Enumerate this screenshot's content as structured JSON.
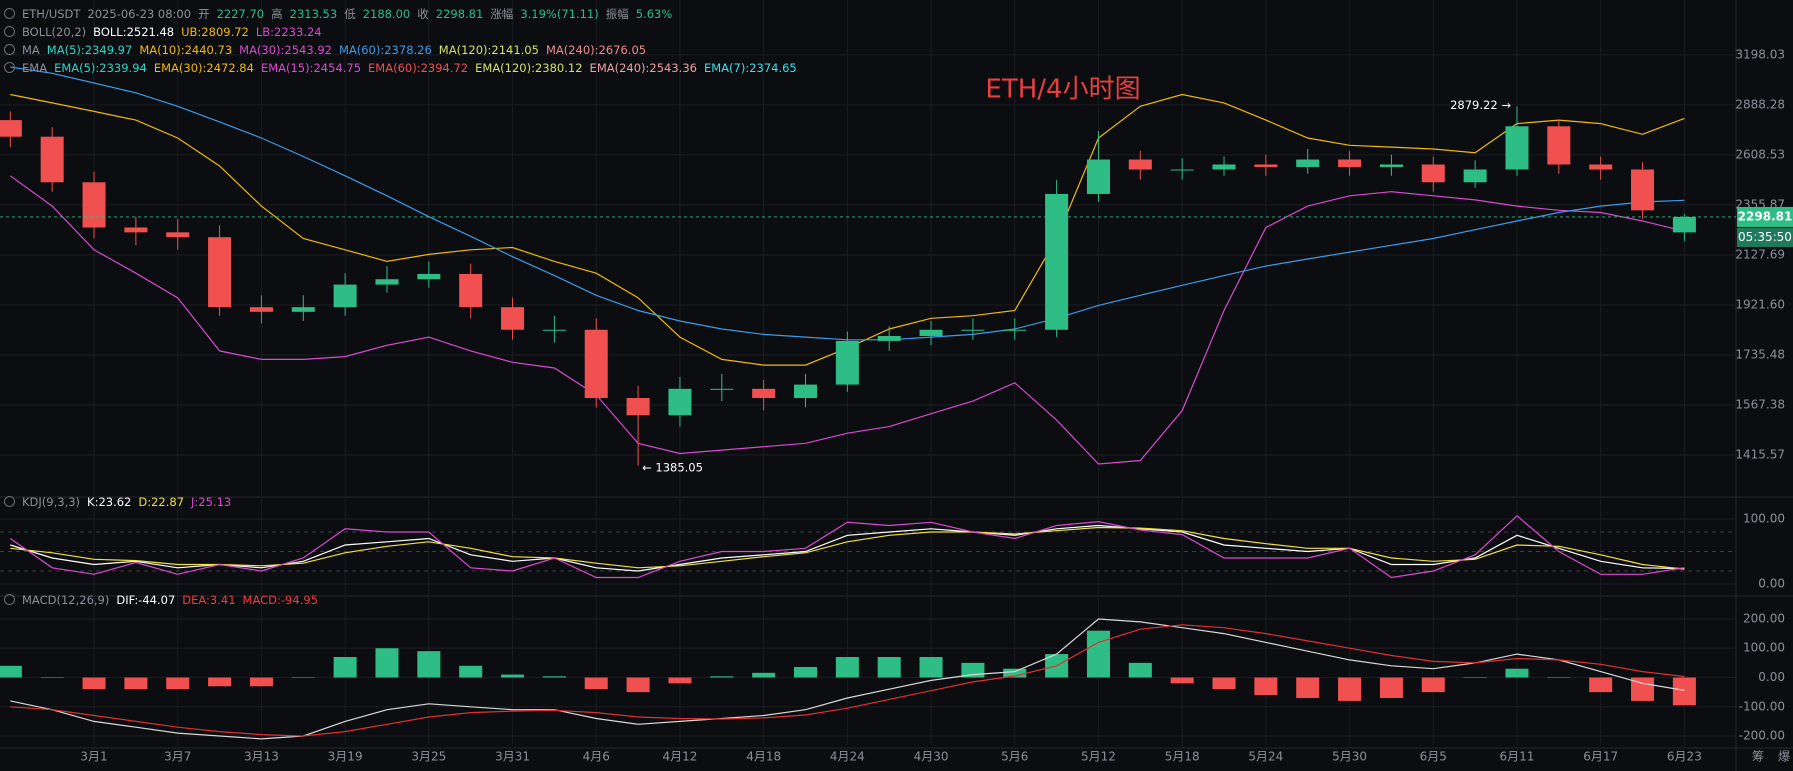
{
  "legends": {
    "price": [
      [
        {
          "text": "ETH/USDT",
          "color": "#8b909a"
        },
        {
          "text": "2025-06-23 08:00",
          "color": "#8b909a"
        },
        {
          "text": "开",
          "color": "#8b909a"
        },
        {
          "text": "2227.70",
          "color": "#2ebd85"
        },
        {
          "text": "高",
          "color": "#8b909a"
        },
        {
          "text": "2313.53",
          "color": "#2ebd85"
        },
        {
          "text": "低",
          "color": "#8b909a"
        },
        {
          "text": "2188.00",
          "color": "#2ebd85"
        },
        {
          "text": "收",
          "color": "#8b909a"
        },
        {
          "text": "2298.81",
          "color": "#2ebd85"
        },
        {
          "text": "涨幅",
          "color": "#8b909a"
        },
        {
          "text": "3.19%(71.11)",
          "color": "#2ebd85"
        },
        {
          "text": "振幅",
          "color": "#8b909a"
        },
        {
          "text": "5.63%",
          "color": "#2ebd85"
        }
      ],
      [
        {
          "text": "BOLL(20,2)",
          "color": "#8b909a"
        },
        {
          "text": "BOLL:2521.48",
          "color": "#ffffff"
        },
        {
          "text": "UB:2809.72",
          "color": "#f0b90b"
        },
        {
          "text": "LB:2233.24",
          "color": "#d84bd0"
        }
      ],
      [
        {
          "text": "MA",
          "color": "#8b909a"
        },
        {
          "text": "MA(5):2349.97",
          "color": "#2bd6c6"
        },
        {
          "text": "MA(10):2440.73",
          "color": "#f0b90b"
        },
        {
          "text": "MA(30):2543.92",
          "color": "#d84bd0"
        },
        {
          "text": "MA(60):2378.26",
          "color": "#3d9be9"
        },
        {
          "text": "MA(120):2141.05",
          "color": "#d6e06a"
        },
        {
          "text": "MA(240):2676.05",
          "color": "#f08a8a"
        }
      ],
      [
        {
          "text": "EMA",
          "color": "#8b909a"
        },
        {
          "text": "EMA(5):2339.94",
          "color": "#2bd6c6"
        },
        {
          "text": "EMA(30):2472.84",
          "color": "#f0b90b"
        },
        {
          "text": "EMA(15):2454.75",
          "color": "#d84bd0"
        },
        {
          "text": "EMA(60):2394.72",
          "color": "#f05050"
        },
        {
          "text": "EMA(120):2380.12",
          "color": "#d6e06a"
        },
        {
          "text": "EMA(240):2543.36",
          "color": "#f0a0a0"
        },
        {
          "text": "EMA(7):2374.65",
          "color": "#3ce0f0"
        }
      ]
    ],
    "kdj": [
      {
        "text": "KDJ(9,3,3)",
        "color": "#8b909a"
      },
      {
        "text": "K:23.62",
        "color": "#ffffff"
      },
      {
        "text": "D:22.87",
        "color": "#f0e040"
      },
      {
        "text": "J:25.13",
        "color": "#d84bd0"
      }
    ],
    "macd": [
      {
        "text": "MACD(12,26,9)",
        "color": "#8b909a"
      },
      {
        "text": "DIF:-44.07",
        "color": "#ffffff"
      },
      {
        "text": "DEA:3.41",
        "color": "#f03c3c"
      },
      {
        "text": "MACD:-94.95",
        "color": "#f03c3c"
      }
    ]
  },
  "toolbar": [
    "筹",
    "爆"
  ],
  "chart_data": [
    {
      "type": "candlestick",
      "title": "ETH/4小时图",
      "log_scale": true,
      "grid": true,
      "x": [
        -6,
        -3,
        0,
        3,
        6,
        9,
        12,
        15,
        18,
        21,
        24,
        27,
        30,
        33,
        36,
        39,
        42,
        45,
        48,
        51,
        54,
        57,
        60,
        63,
        66,
        69,
        72,
        75,
        78,
        81,
        84,
        87,
        90,
        93,
        96,
        99,
        102,
        105,
        108,
        111,
        114
      ],
      "open": [
        2800,
        2707,
        2467,
        2250,
        2228,
        2206,
        1913,
        1895,
        1913,
        2003,
        2025,
        2047,
        1913,
        1827,
        1827,
        1590,
        1535,
        1620,
        1620,
        1590,
        1634,
        1786,
        1804,
        1827,
        1827,
        1827,
        2409,
        2584,
        2532,
        2532,
        2558,
        2545,
        2584,
        2545,
        2558,
        2467,
        2532,
        2765,
        2558,
        2532,
        2227.7
      ],
      "high": [
        2850,
        2760,
        2520,
        2300,
        2290,
        2260,
        1960,
        1960,
        2050,
        2080,
        2100,
        2090,
        1950,
        1880,
        1870,
        1630,
        1660,
        1670,
        1650,
        1670,
        1820,
        1840,
        1860,
        1870,
        1870,
        2480,
        2738,
        2630,
        2590,
        2600,
        2610,
        2640,
        2630,
        2610,
        2600,
        2580,
        2879.22,
        2800,
        2600,
        2570,
        2313.53
      ],
      "low": [
        2650,
        2420,
        2200,
        2170,
        2150,
        1880,
        1850,
        1860,
        1880,
        1970,
        1990,
        1870,
        1790,
        1780,
        1560,
        1385.05,
        1500,
        1580,
        1550,
        1560,
        1610,
        1750,
        1770,
        1790,
        1790,
        1800,
        2370,
        2480,
        2480,
        2500,
        2500,
        2510,
        2500,
        2500,
        2420,
        2440,
        2500,
        2510,
        2480,
        2290,
        2188.0
      ],
      "close": [
        2707,
        2467,
        2250,
        2228,
        2206,
        1913,
        1895,
        1913,
        2003,
        2025,
        2047,
        1913,
        1827,
        1827,
        1590,
        1535,
        1620,
        1620,
        1590,
        1634,
        1786,
        1804,
        1827,
        1827,
        1827,
        2409,
        2584,
        2532,
        2532,
        2558,
        2545,
        2584,
        2545,
        2558,
        2467,
        2532,
        2765,
        2558,
        2532,
        2330,
        2298.81
      ],
      "up_color": "#2ebd85",
      "down_color": "#f0504f",
      "lines": [
        {
          "color": "#f0b90b",
          "values": [
            2950,
            2900,
            2850,
            2800,
            2700,
            2550,
            2350,
            2200,
            2150,
            2100,
            2130,
            2150,
            2160,
            2100,
            2050,
            1950,
            1800,
            1720,
            1700,
            1700,
            1760,
            1830,
            1870,
            1880,
            1900,
            2200,
            2700,
            2880,
            2950,
            2900,
            2800,
            2700,
            2660,
            2650,
            2640,
            2620,
            2780,
            2800,
            2780,
            2720,
            2809.72
          ]
        },
        {
          "color": "#d84bd0",
          "values": [
            2500,
            2350,
            2150,
            2050,
            1950,
            1750,
            1720,
            1720,
            1730,
            1770,
            1800,
            1750,
            1710,
            1690,
            1600,
            1450,
            1420,
            1430,
            1440,
            1450,
            1480,
            1500,
            1540,
            1580,
            1640,
            1520,
            1390,
            1400,
            1550,
            1900,
            2250,
            2350,
            2400,
            2420,
            2400,
            2380,
            2350,
            2330,
            2320,
            2280,
            2233.24
          ]
        },
        {
          "color": "#3d9be9",
          "values": [
            3120,
            3080,
            3020,
            2960,
            2880,
            2790,
            2700,
            2600,
            2500,
            2400,
            2300,
            2210,
            2120,
            2040,
            1960,
            1900,
            1860,
            1830,
            1810,
            1800,
            1790,
            1790,
            1800,
            1810,
            1830,
            1870,
            1920,
            1960,
            2000,
            2040,
            2080,
            2110,
            2140,
            2170,
            2200,
            2240,
            2280,
            2320,
            2350,
            2370,
            2378.26
          ]
        }
      ],
      "high_label": "2879.22 →",
      "low_label": "← 1385.05",
      "price_tag": "2298.81",
      "countdown": "05:35:50",
      "xlim": [
        -6.74,
        117.7
      ],
      "ylim": [
        1313,
        3518
      ],
      "yticks": [
        3198.03,
        2888.28,
        2608.53,
        2355.87,
        2127.69,
        {
          "value": 1921.6,
          "label": "1921.60"
        },
        1735.48,
        1567.38,
        1415.57
      ]
    },
    {
      "type": "line",
      "x": [
        -6,
        -3,
        0,
        3,
        6,
        9,
        12,
        15,
        18,
        21,
        24,
        27,
        30,
        33,
        36,
        39,
        42,
        45,
        48,
        51,
        54,
        57,
        60,
        63,
        66,
        69,
        72,
        75,
        78,
        81,
        84,
        87,
        90,
        93,
        96,
        99,
        102,
        105,
        108,
        111,
        114
      ],
      "series": [
        {
          "color": "#ffffff",
          "values": [
            60,
            40,
            30,
            35,
            25,
            30,
            25,
            35,
            60,
            65,
            70,
            45,
            35,
            40,
            25,
            20,
            30,
            40,
            45,
            50,
            75,
            80,
            85,
            80,
            75,
            85,
            90,
            85,
            80,
            60,
            55,
            50,
            55,
            30,
            30,
            40,
            75,
            55,
            35,
            25,
            23.62
          ]
        },
        {
          "color": "#f0e040",
          "values": [
            55,
            48,
            38,
            36,
            30,
            30,
            28,
            32,
            48,
            58,
            65,
            55,
            42,
            40,
            32,
            25,
            28,
            35,
            42,
            48,
            65,
            75,
            80,
            80,
            77,
            82,
            87,
            86,
            82,
            70,
            62,
            55,
            55,
            40,
            35,
            38,
            60,
            58,
            45,
            30,
            22.87
          ]
        },
        {
          "color": "#d84bd0",
          "values": [
            70,
            25,
            15,
            33,
            15,
            30,
            20,
            40,
            85,
            80,
            80,
            25,
            20,
            40,
            10,
            10,
            35,
            50,
            50,
            55,
            95,
            90,
            95,
            80,
            70,
            90,
            96,
            83,
            76,
            40,
            40,
            40,
            55,
            10,
            20,
            45,
            105,
            50,
            15,
            15,
            25.13
          ]
        }
      ],
      "hlines": [
        80,
        50,
        20
      ],
      "xlim": [
        -6.74,
        117.7
      ],
      "ylim": [
        -10,
        110
      ],
      "yticks": [
        {
          "value": 100,
          "label": "100.00"
        },
        {
          "value": 0,
          "label": "0.00"
        }
      ]
    },
    {
      "type": "macd",
      "x": [
        -6,
        -3,
        0,
        3,
        6,
        9,
        12,
        15,
        18,
        21,
        24,
        27,
        30,
        33,
        36,
        39,
        42,
        45,
        48,
        51,
        54,
        57,
        60,
        63,
        66,
        69,
        72,
        75,
        78,
        81,
        84,
        87,
        90,
        93,
        96,
        99,
        102,
        105,
        108,
        111,
        114
      ],
      "values": [
        40,
        0,
        -40,
        -40,
        -40,
        -30,
        -30,
        0,
        70,
        100,
        90,
        40,
        10,
        4,
        -40,
        -50,
        -20,
        4,
        16,
        36,
        70,
        70,
        70,
        50,
        30,
        80,
        160,
        50,
        -20,
        -40,
        -60,
        -70,
        -80,
        -70,
        -50,
        0,
        30,
        0,
        -50,
        -80,
        -94.95
      ],
      "up_color": "#2ebd85",
      "down_color": "#f0504f",
      "series": [
        {
          "color": "#d8d8d8",
          "values": [
            -80,
            -110,
            -150,
            -170,
            -190,
            -200,
            -210,
            -200,
            -150,
            -110,
            -90,
            -100,
            -110,
            -110,
            -140,
            -160,
            -150,
            -140,
            -130,
            -110,
            -70,
            -40,
            -10,
            10,
            20,
            80,
            200,
            190,
            170,
            150,
            120,
            90,
            60,
            40,
            30,
            50,
            80,
            60,
            20,
            -20,
            -44.07
          ]
        },
        {
          "color": "#e03030",
          "values": [
            -100,
            -110,
            -130,
            -150,
            -170,
            -185,
            -195,
            -200,
            -185,
            -160,
            -135,
            -120,
            -115,
            -112,
            -120,
            -135,
            -140,
            -142,
            -138,
            -128,
            -105,
            -75,
            -45,
            -15,
            5,
            40,
            120,
            165,
            180,
            170,
            150,
            125,
            100,
            75,
            55,
            50,
            65,
            60,
            45,
            20,
            3.41
          ]
        }
      ],
      "xlim": [
        -6.74,
        117.7
      ],
      "ylim": [
        -230,
        245
      ],
      "yticks": [
        {
          "value": 200,
          "label": "200.00"
        },
        {
          "value": 100,
          "label": "100.00"
        },
        {
          "value": 0,
          "label": "0.00"
        },
        {
          "value": -100,
          "label": "-100.00"
        },
        {
          "value": -200,
          "label": "-200.00"
        }
      ],
      "xticks": [
        {
          "value": 0,
          "label": "3月1"
        },
        {
          "value": 6,
          "label": "3月7"
        },
        {
          "value": 12,
          "label": "3月13"
        },
        {
          "value": 18,
          "label": "3月19"
        },
        {
          "value": 24,
          "label": "3月25"
        },
        {
          "value": 30,
          "label": "3月31"
        },
        {
          "value": 36,
          "label": "4月6"
        },
        {
          "value": 42,
          "label": "4月12"
        },
        {
          "value": 48,
          "label": "4月18"
        },
        {
          "value": 54,
          "label": "4月24"
        },
        {
          "value": 60,
          "label": "4月30"
        },
        {
          "value": 66,
          "label": "5月6"
        },
        {
          "value": 72,
          "label": "5月12"
        },
        {
          "value": 78,
          "label": "5月18"
        },
        {
          "value": 84,
          "label": "5月24"
        },
        {
          "value": 90,
          "label": "5月30"
        },
        {
          "value": 96,
          "label": "6月5"
        },
        {
          "value": 102,
          "label": "6月11"
        },
        {
          "value": 108,
          "label": "6月17"
        },
        {
          "value": 114,
          "label": "6月23"
        }
      ]
    }
  ]
}
